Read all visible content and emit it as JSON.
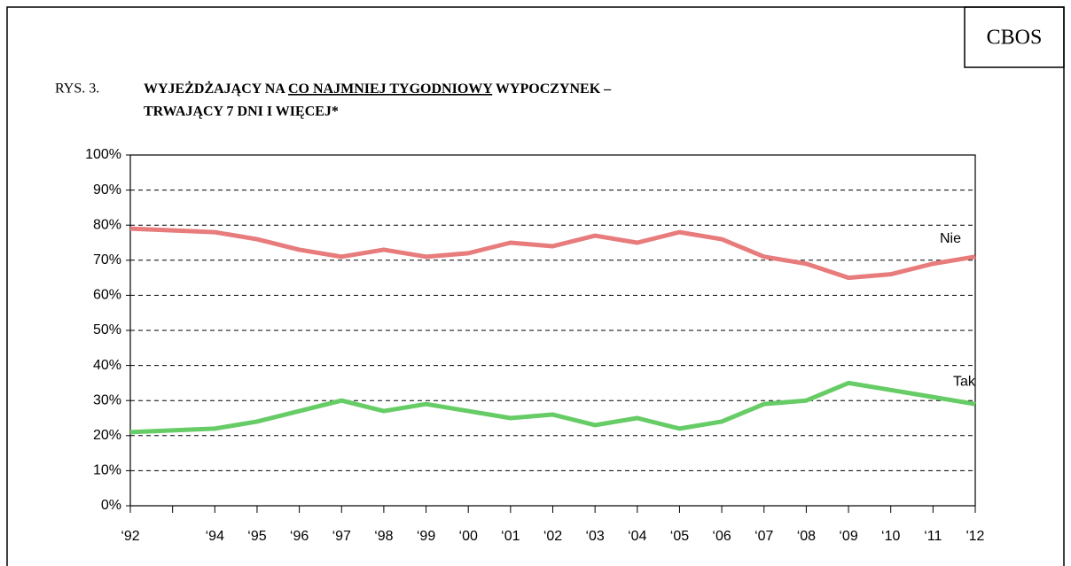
{
  "header": {
    "badge": "CBOS"
  },
  "chart_data": {
    "type": "line",
    "title_prefix": "RYS. 3.",
    "title_parts": [
      "WYJEŻDŻAJĄCY NA ",
      "CO NAJMNIEJ TYGODNIOWY",
      " WYPOCZYNEK –"
    ],
    "title_line2": "TRWAJĄCY 7 DNI I WIĘCEJ*",
    "categories": [
      "‘92",
      null,
      "‘94",
      "‘95",
      "‘96",
      "‘97",
      "‘98",
      "‘99",
      "‘00",
      "‘01",
      "‘02",
      "‘03",
      "‘04",
      "‘05",
      "‘06",
      "‘07",
      "‘08",
      "‘09",
      "‘10",
      "‘11",
      "'12"
    ],
    "series": [
      {
        "name": "Nie",
        "color": "#e87c7c",
        "values": [
          79,
          78.5,
          78,
          76,
          73,
          71,
          73,
          71,
          72,
          75,
          74,
          77,
          75,
          78,
          76,
          71,
          69,
          65,
          66,
          69,
          71
        ]
      },
      {
        "name": "Tak",
        "color": "#66cc66",
        "values": [
          21,
          21.5,
          22,
          24,
          27,
          30,
          27,
          29,
          27,
          25,
          26,
          23,
          25,
          22,
          24,
          29,
          30,
          35,
          33,
          31,
          29
        ]
      }
    ],
    "ylim": [
      0,
      100
    ],
    "yticks": [
      {
        "value": 0,
        "label": "0%"
      },
      {
        "value": 10,
        "label": "10%"
      },
      {
        "value": 20,
        "label": "20%"
      },
      {
        "value": 30,
        "label": "30%"
      },
      {
        "value": 40,
        "label": "40%"
      },
      {
        "value": 50,
        "label": "50%"
      },
      {
        "value": 60,
        "label": "60%"
      },
      {
        "value": 70,
        "label": "70%"
      },
      {
        "value": 80,
        "label": "80%"
      },
      {
        "value": 90,
        "label": "90%"
      },
      {
        "value": 100,
        "label": "100%"
      }
    ],
    "grid": true
  }
}
